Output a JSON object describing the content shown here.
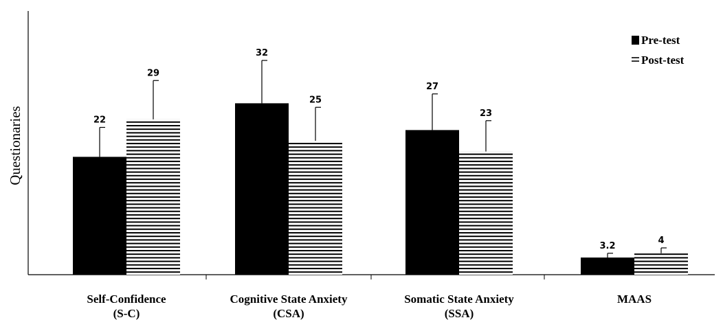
{
  "chart_data": {
    "type": "bar",
    "title": "",
    "xlabel": "",
    "ylabel": "Questionaries",
    "categories": [
      [
        "Self-Confidence",
        "(S-C)"
      ],
      [
        "Cognitive State Anxiety",
        "(CSA)"
      ],
      [
        "Somatic State Anxiety",
        "(SSA)"
      ],
      [
        "MAAS"
      ]
    ],
    "series": [
      {
        "name": "Pre-test",
        "values": [
          22,
          32,
          27,
          3.2
        ],
        "labels": [
          "22",
          "32",
          "27",
          "3.2"
        ],
        "fill": "#000000"
      },
      {
        "name": "Post-test",
        "values": [
          29,
          25,
          23,
          4
        ],
        "labels": [
          "29",
          "25",
          "23",
          "4"
        ],
        "fill": "striped"
      }
    ],
    "legend_position": "top-right",
    "grid": false
  }
}
